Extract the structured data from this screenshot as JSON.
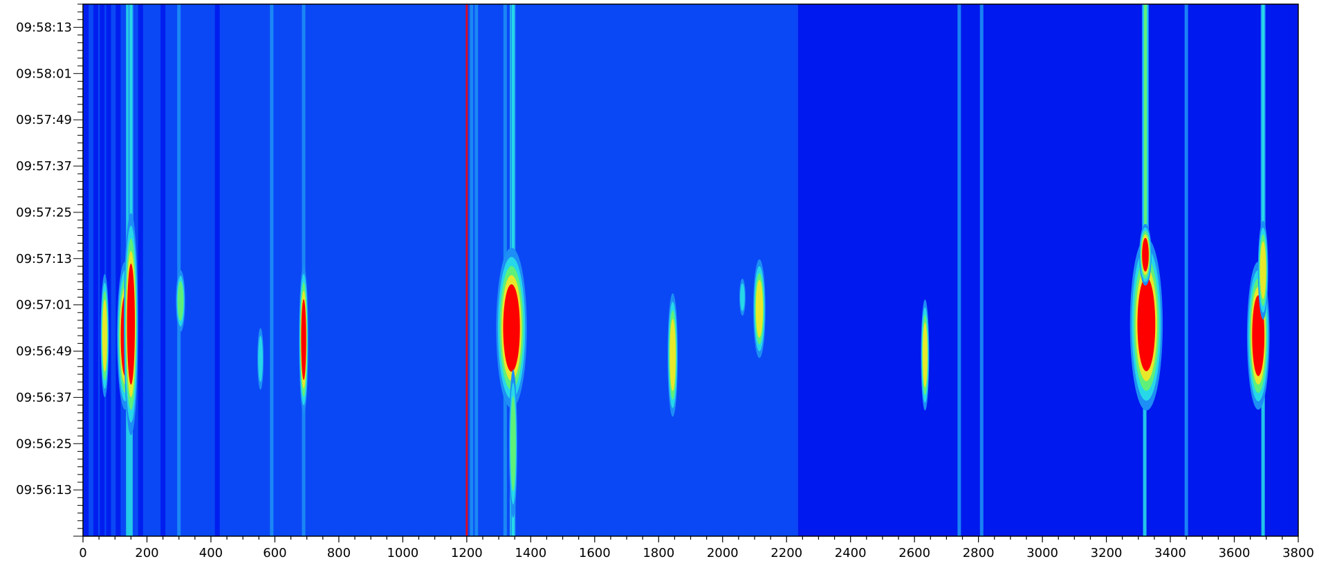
{
  "chart_data": {
    "type": "heatmap",
    "title": "",
    "xlabel": "",
    "ylabel": "",
    "xlim": [
      0,
      3800
    ],
    "x_ticks": [
      0,
      200,
      400,
      600,
      800,
      1000,
      1200,
      1400,
      1600,
      1800,
      2000,
      2200,
      2400,
      2600,
      2800,
      3000,
      3200,
      3400,
      3600,
      3800
    ],
    "y_axis": {
      "time_range": [
        "09:56:01",
        "09:58:19"
      ],
      "ticks": [
        "09:56:13",
        "09:56:25",
        "09:56:37",
        "09:56:49",
        "09:57:01",
        "09:57:13",
        "09:57:25",
        "09:57:37",
        "09:57:49",
        "09:58:01",
        "09:58:13"
      ]
    },
    "grid": false,
    "legend": "none",
    "colorscale": [
      "#0019ee",
      "#0a48f5",
      "#1d8ef5",
      "#27d8e8",
      "#5ff07a",
      "#e8e82a",
      "#ff0000"
    ],
    "background_regions": [
      {
        "x": [
          0,
          2235
        ],
        "level": 1
      },
      {
        "x": [
          2235,
          3800
        ],
        "level": 0
      }
    ],
    "vertical_lines": [
      {
        "x": 10,
        "level": 0
      },
      {
        "x": 40,
        "level": 0
      },
      {
        "x": 60,
        "level": 0
      },
      {
        "x": 80,
        "level": 0
      },
      {
        "x": 110,
        "level": 0
      },
      {
        "x": 140,
        "level": 3
      },
      {
        "x": 150,
        "level": 3
      },
      {
        "x": 180,
        "level": 0
      },
      {
        "x": 250,
        "level": 0
      },
      {
        "x": 300,
        "level": 2
      },
      {
        "x": 420,
        "level": 0
      },
      {
        "x": 590,
        "level": 2
      },
      {
        "x": 690,
        "level": 2
      },
      {
        "x": 1200,
        "level": 6
      },
      {
        "x": 1215,
        "level": 2
      },
      {
        "x": 1230,
        "level": 2
      },
      {
        "x": 1320,
        "level": 2
      },
      {
        "x": 1340,
        "level": 3
      },
      {
        "x": 2740,
        "level": 2
      },
      {
        "x": 2810,
        "level": 2
      },
      {
        "x": 3320,
        "level": 3
      },
      {
        "x": 3450,
        "level": 2
      },
      {
        "x": 3520,
        "level": 0
      },
      {
        "x": 3560,
        "level": 0
      },
      {
        "x": 3630,
        "level": 0
      },
      {
        "x": 3690,
        "level": 3
      },
      {
        "x": 3760,
        "level": 0
      },
      {
        "x": 3780,
        "level": 0
      }
    ],
    "peaks": [
      {
        "x": 68,
        "t": "09:56:53",
        "dx": 8,
        "dt": 10,
        "intensity": 5
      },
      {
        "x": 132,
        "t": "09:56:53",
        "dx": 16,
        "dt": 12,
        "intensity": 6
      },
      {
        "x": 150,
        "t": "09:56:56",
        "dx": 14,
        "dt": 18,
        "intensity": 6
      },
      {
        "x": 305,
        "t": "09:57:02",
        "dx": 9,
        "dt": 5,
        "intensity": 4
      },
      {
        "x": 555,
        "t": "09:56:47",
        "dx": 6,
        "dt": 5,
        "intensity": 3
      },
      {
        "x": 690,
        "t": "09:56:52",
        "dx": 9,
        "dt": 12,
        "intensity": 6
      },
      {
        "x": 1340,
        "t": "09:56:55",
        "dx": 30,
        "dt": 13,
        "intensity": 6
      },
      {
        "x": 1345,
        "t": "09:56:25",
        "dx": 8,
        "dt": 12,
        "intensity": 4
      },
      {
        "x": 1844,
        "t": "09:56:48",
        "dx": 10,
        "dt": 10,
        "intensity": 5
      },
      {
        "x": 2115,
        "t": "09:57:00",
        "dx": 12,
        "dt": 8,
        "intensity": 5
      },
      {
        "x": 2062,
        "t": "09:57:03",
        "dx": 6,
        "dt": 3,
        "intensity": 3
      },
      {
        "x": 2633,
        "t": "09:56:48",
        "dx": 8,
        "dt": 9,
        "intensity": 5
      },
      {
        "x": 3325,
        "t": "09:56:56",
        "dx": 32,
        "dt": 14,
        "intensity": 6
      },
      {
        "x": 3322,
        "t": "09:57:14",
        "dx": 12,
        "dt": 5,
        "intensity": 6
      },
      {
        "x": 3675,
        "t": "09:56:53",
        "dx": 22,
        "dt": 12,
        "intensity": 6
      },
      {
        "x": 3690,
        "t": "09:57:10",
        "dx": 10,
        "dt": 8,
        "intensity": 5
      }
    ],
    "plumes": [
      {
        "x": 150,
        "from": "09:56:40",
        "to": "09:58:19",
        "intensity": 3
      },
      {
        "x": 1345,
        "from": "09:56:01",
        "to": "09:58:19",
        "intensity": 3
      },
      {
        "x": 3322,
        "from": "09:57:00",
        "to": "09:58:19",
        "intensity": 4
      },
      {
        "x": 3690,
        "from": "09:56:40",
        "to": "09:58:19",
        "intensity": 3
      }
    ]
  }
}
